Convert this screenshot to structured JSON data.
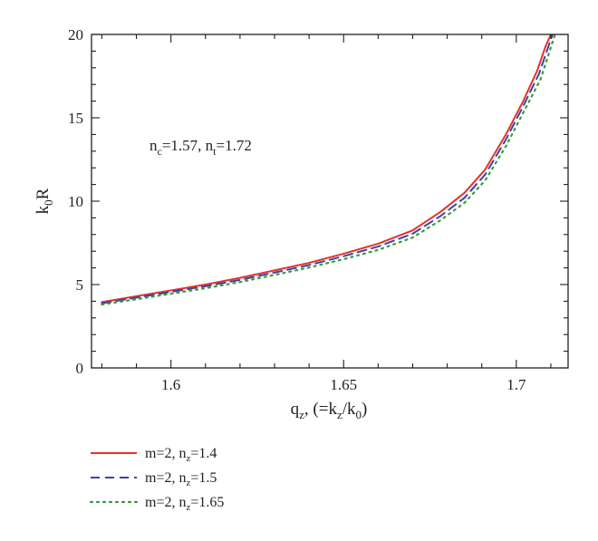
{
  "chart_data": {
    "type": "line",
    "title": "",
    "xlabel": {
      "base": "q",
      "sub": "z",
      "rest_before": ", (=k",
      "rest_sub1": "z",
      "rest_mid": "/k",
      "rest_sub2": "0",
      "rest_after": ")"
    },
    "ylabel": {
      "base": "k",
      "sub": "0",
      "rest": "R"
    },
    "xlim": [
      1.577,
      1.715
    ],
    "ylim": [
      0,
      20
    ],
    "xticks": [
      1.6,
      1.65,
      1.7
    ],
    "xtick_labels": [
      "1.6",
      "1.65",
      "1.7"
    ],
    "yticks": [
      0,
      5,
      10,
      15,
      20
    ],
    "ytick_labels": [
      "0",
      "5",
      "10",
      "15",
      "20"
    ],
    "grid": false,
    "legend_position": "bottom-left, below plot",
    "annotation": {
      "p1": "n",
      "s1": "c",
      "mid": "=1.57, n",
      "s2": "t",
      "tail": "=1.72"
    },
    "series": [
      {
        "name": "m=2, n_z=1.4",
        "legend": {
          "pre": "m=2, n",
          "sub": "z",
          "post": "=1.4"
        },
        "color": "#e8302a",
        "dash": "solid",
        "x": [
          1.58,
          1.59,
          1.6,
          1.61,
          1.62,
          1.63,
          1.64,
          1.65,
          1.66,
          1.67,
          1.678,
          1.685,
          1.691,
          1.697,
          1.702,
          1.706,
          1.7085,
          1.71
        ],
        "y": [
          3.95,
          4.3,
          4.65,
          5.0,
          5.4,
          5.85,
          6.3,
          6.85,
          7.45,
          8.25,
          9.35,
          10.5,
          11.9,
          14.0,
          16.0,
          17.8,
          19.3,
          20.0
        ]
      },
      {
        "name": "m=2, n_z=1.5",
        "legend": {
          "pre": "m=2, n",
          "sub": "z",
          "post": "=1.5"
        },
        "color": "#3b45a0",
        "dash": "dashed",
        "x": [
          1.58,
          1.59,
          1.6,
          1.61,
          1.62,
          1.63,
          1.64,
          1.65,
          1.66,
          1.67,
          1.678,
          1.685,
          1.691,
          1.697,
          1.702,
          1.7065,
          1.709,
          1.7105
        ],
        "y": [
          3.88,
          4.22,
          4.56,
          4.9,
          5.28,
          5.72,
          6.17,
          6.7,
          7.28,
          8.05,
          9.1,
          10.2,
          11.6,
          13.7,
          15.7,
          17.6,
          19.1,
          20.0
        ]
      },
      {
        "name": "m=2, n_z=1.65",
        "legend": {
          "pre": "m=2, n",
          "sub": "z",
          "post": "=1.65"
        },
        "color": "#3a9a3e",
        "dash": "dotted",
        "x": [
          1.58,
          1.59,
          1.6,
          1.61,
          1.62,
          1.63,
          1.64,
          1.65,
          1.66,
          1.67,
          1.678,
          1.685,
          1.691,
          1.697,
          1.702,
          1.707,
          1.7095,
          1.7112
        ],
        "y": [
          3.8,
          4.12,
          4.45,
          4.78,
          5.15,
          5.58,
          6.02,
          6.52,
          7.08,
          7.82,
          8.85,
          9.9,
          11.25,
          13.3,
          15.3,
          17.3,
          18.9,
          20.0
        ]
      }
    ]
  }
}
